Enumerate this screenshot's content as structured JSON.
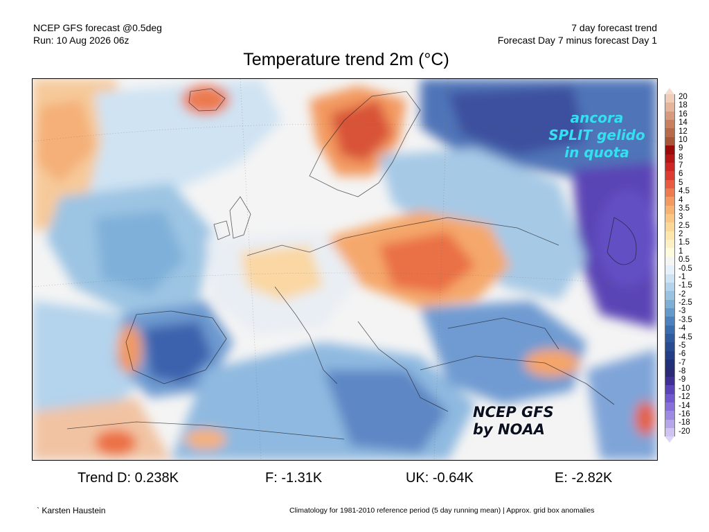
{
  "header": {
    "model": "NCEP GFS forecast @0.5deg",
    "run": "Run: 10 Aug 2026 06z",
    "trend_title": "7 day forecast trend",
    "trend_def": "Forecast Day 7 minus forecast Day 1"
  },
  "title": "Temperature trend 2m (°C)",
  "overlay": {
    "line1": "ancora",
    "line2": "SPLIT gelido",
    "line3": "in quota",
    "credit1": "NCEP GFS",
    "credit2": "by NOAA"
  },
  "colorbar": {
    "labels": [
      "20",
      "18",
      "16",
      "14",
      "12",
      "10",
      "9",
      "8",
      "7",
      "6",
      "5",
      "4.5",
      "4",
      "3.5",
      "3",
      "2.5",
      "2",
      "1.5",
      "1",
      "0.5",
      "-0.5",
      "-1",
      "-1.5",
      "-2",
      "-2.5",
      "-3",
      "-3.5",
      "-4",
      "-4.5",
      "-5",
      "-6",
      "-7",
      "-8",
      "-9",
      "-10",
      "-12",
      "-14",
      "-16",
      "-18",
      "-20"
    ],
    "colors": [
      "#f0cdb8",
      "#e6b49a",
      "#d89a7c",
      "#c8805f",
      "#b86a4a",
      "#a85538",
      "#9c0a0a",
      "#b81515",
      "#cf2525",
      "#e03b32",
      "#ea5a40",
      "#f07a4f",
      "#f49a60",
      "#f7b272",
      "#f9c684",
      "#fbd897",
      "#fce6ab",
      "#fdf1c4",
      "#fefadc",
      "#f5f5f5",
      "#e4f0fa",
      "#cde3f4",
      "#b3d3ec",
      "#98c1e2",
      "#7dafd7",
      "#6399cb",
      "#4b82bd",
      "#3a6daf",
      "#2e5aa0",
      "#284b92",
      "#253d86",
      "#22307a",
      "#2a2a78",
      "#3d2f94",
      "#5a43b8",
      "#7158cc",
      "#8770da",
      "#9d8ae3",
      "#b5a6ec",
      "#cec3f3"
    ],
    "tip_top": "#f3ddd0",
    "tip_bottom": "#ddd5f7"
  },
  "stats": {
    "trend": "Trend D: 0.238K",
    "france": "F: -1.31K",
    "uk": "UK: -0.64K",
    "europe": "E: -2.82K"
  },
  "footer": {
    "author": "` Karsten Haustein",
    "note": "Climatology for 1981-2010 reference period (5 day running mean) | Approx. grid box anomalies"
  }
}
